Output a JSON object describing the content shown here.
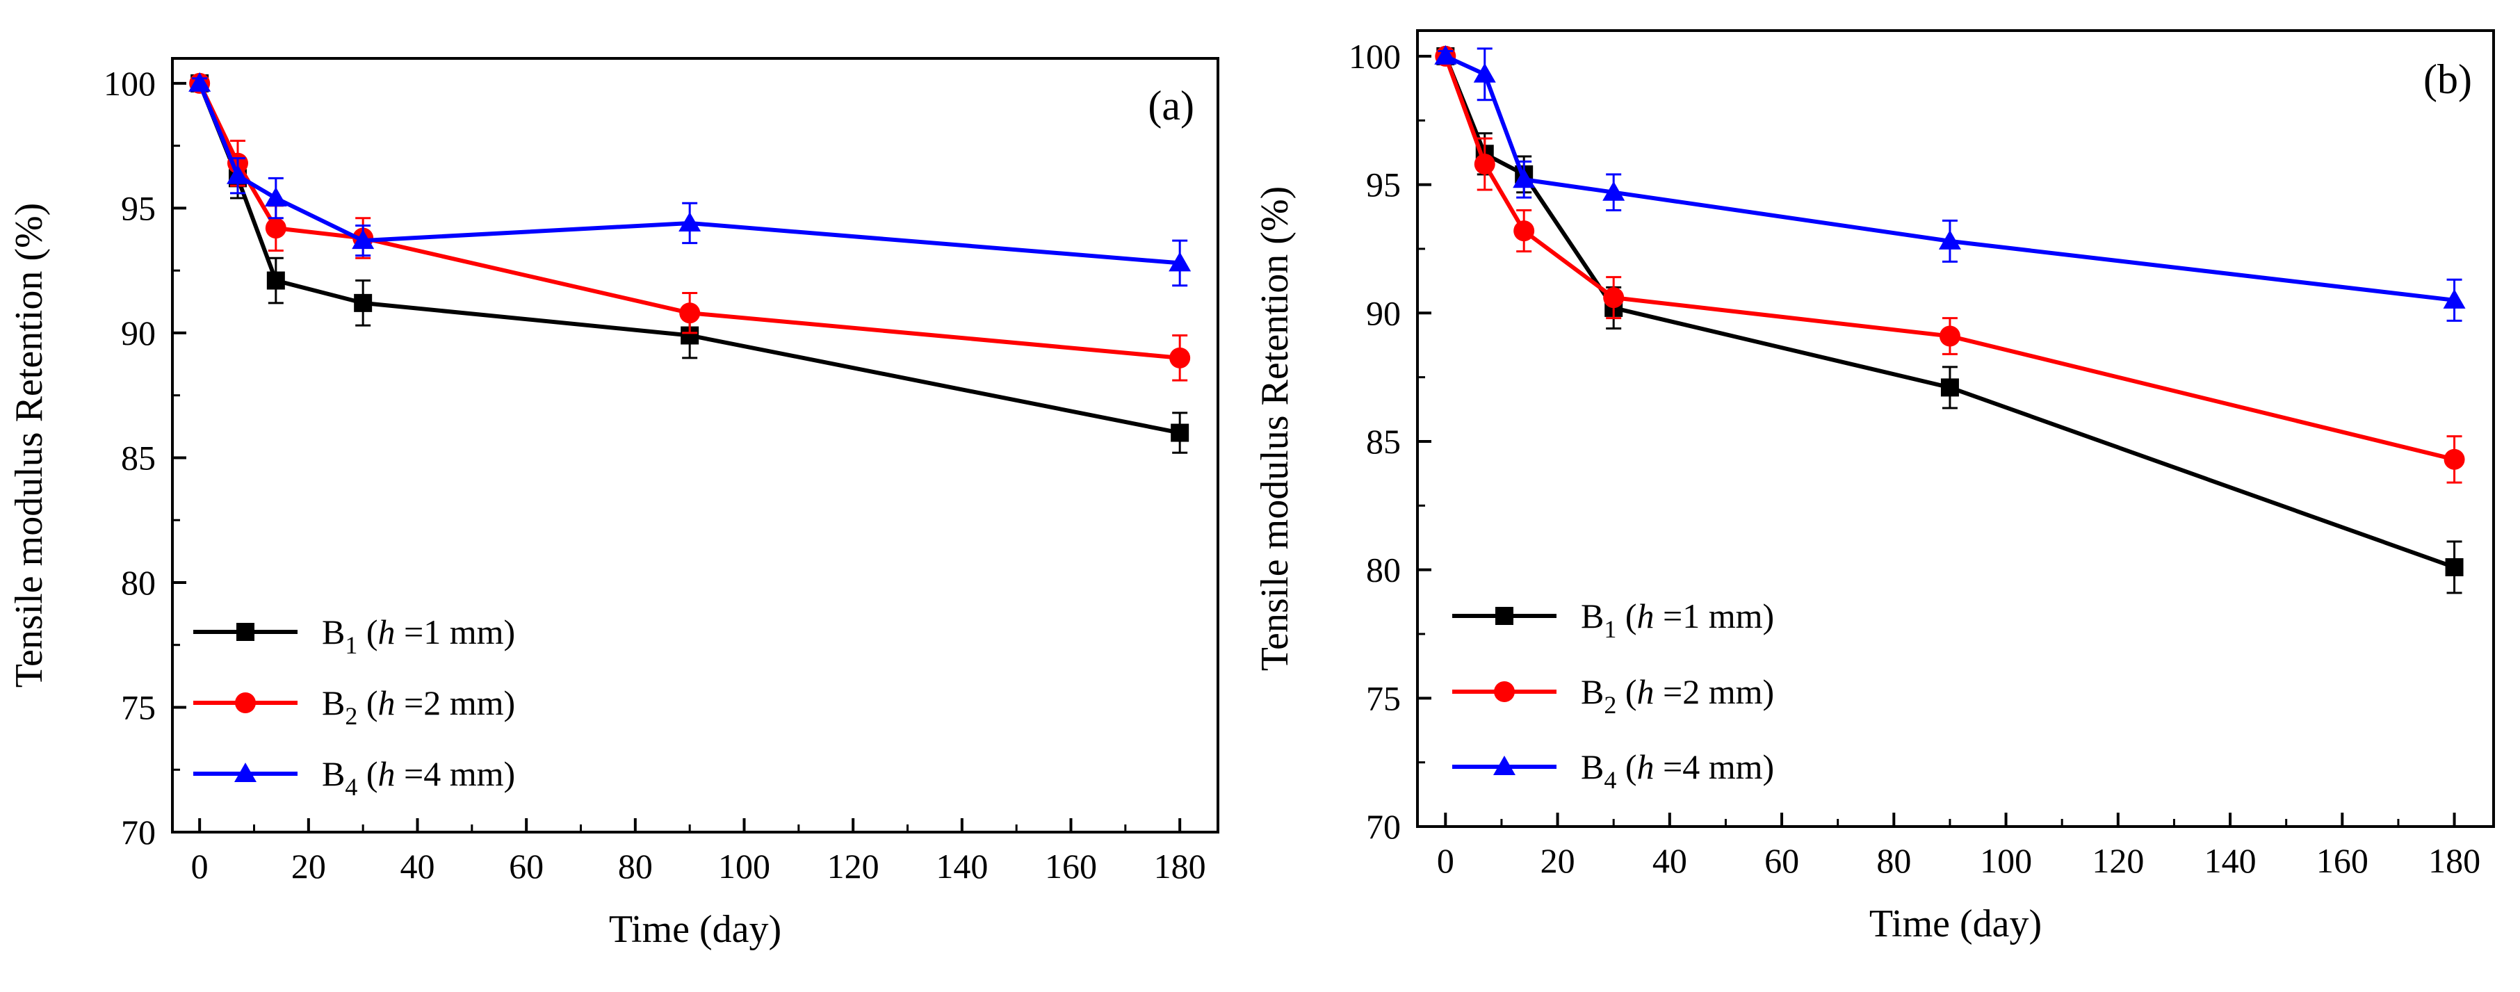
{
  "chart_data": [
    {
      "type": "line",
      "panel_label": "(a)",
      "xlabel": "Time (day)",
      "ylabel": "Tensile modulus Retention (%)",
      "xlim": [
        -5,
        187
      ],
      "ylim": [
        70,
        101
      ],
      "xticks": [
        0,
        20,
        40,
        60,
        80,
        100,
        120,
        140,
        160,
        180
      ],
      "yticks": [
        70,
        75,
        80,
        85,
        90,
        95,
        100
      ],
      "legend_position": "bottom-left",
      "series": [
        {
          "name": "B1 (h =1 mm)",
          "base": "B",
          "sub": "1",
          "open": " (",
          "var": "h",
          "rest": " =1 mm)",
          "color": "#000000",
          "marker": "square",
          "x": [
            0,
            7,
            14,
            30,
            90,
            180
          ],
          "y": [
            100,
            96.2,
            92.1,
            91.2,
            89.9,
            86.0
          ],
          "err": [
            0.2,
            0.8,
            0.9,
            0.9,
            0.9,
            0.8
          ]
        },
        {
          "name": "B2 (h =2 mm)",
          "base": "B",
          "sub": "2",
          "open": " (",
          "var": "h",
          "rest": " =2 mm)",
          "color": "#ff0000",
          "marker": "circle",
          "x": [
            0,
            7,
            14,
            30,
            90,
            180
          ],
          "y": [
            100,
            96.8,
            94.2,
            93.8,
            90.8,
            89.0
          ],
          "err": [
            0.2,
            0.9,
            0.9,
            0.8,
            0.8,
            0.9
          ]
        },
        {
          "name": "B4 (h =4 mm)",
          "base": "B",
          "sub": "4",
          "open": " (",
          "var": "h",
          "rest": " =4 mm)",
          "color": "#0000ff",
          "marker": "triangle",
          "x": [
            0,
            7,
            14,
            30,
            90,
            180
          ],
          "y": [
            100,
            96.3,
            95.4,
            93.7,
            94.4,
            92.8
          ],
          "err": [
            0.2,
            0.7,
            0.8,
            0.6,
            0.8,
            0.9
          ]
        }
      ]
    },
    {
      "type": "line",
      "panel_label": "(b)",
      "xlabel": "Time (day)",
      "ylabel": "Tensile modulus Retention (%)",
      "xlim": [
        -5,
        187
      ],
      "ylim": [
        70,
        101
      ],
      "xticks": [
        0,
        20,
        40,
        60,
        80,
        100,
        120,
        140,
        160,
        180
      ],
      "yticks": [
        70,
        75,
        80,
        85,
        90,
        95,
        100
      ],
      "legend_position": "bottom-left",
      "series": [
        {
          "name": "B1 (h =1 mm)",
          "base": "B",
          "sub": "1",
          "open": " (",
          "var": "h",
          "rest": " =1 mm)",
          "color": "#000000",
          "marker": "square",
          "x": [
            0,
            7,
            14,
            30,
            90,
            180
          ],
          "y": [
            100,
            96.2,
            95.4,
            90.2,
            87.1,
            80.1
          ],
          "err": [
            0.2,
            0.8,
            0.7,
            0.8,
            0.8,
            1.0
          ]
        },
        {
          "name": "B2 (h =2 mm)",
          "base": "B",
          "sub": "2",
          "open": " (",
          "var": "h",
          "rest": " =2 mm)",
          "color": "#ff0000",
          "marker": "circle",
          "x": [
            0,
            7,
            14,
            30,
            90,
            180
          ],
          "y": [
            100,
            95.8,
            93.2,
            90.6,
            89.1,
            84.3
          ],
          "err": [
            0.2,
            1.0,
            0.8,
            0.8,
            0.7,
            0.9
          ]
        },
        {
          "name": "B4 (h =4 mm)",
          "base": "B",
          "sub": "4",
          "open": " (",
          "var": "h",
          "rest": " =4 mm)",
          "color": "#0000ff",
          "marker": "triangle",
          "x": [
            0,
            7,
            14,
            30,
            90,
            180
          ],
          "y": [
            100,
            99.3,
            95.2,
            94.7,
            92.8,
            90.5
          ],
          "err": [
            0.2,
            1.0,
            0.7,
            0.7,
            0.8,
            0.8
          ]
        }
      ]
    }
  ]
}
